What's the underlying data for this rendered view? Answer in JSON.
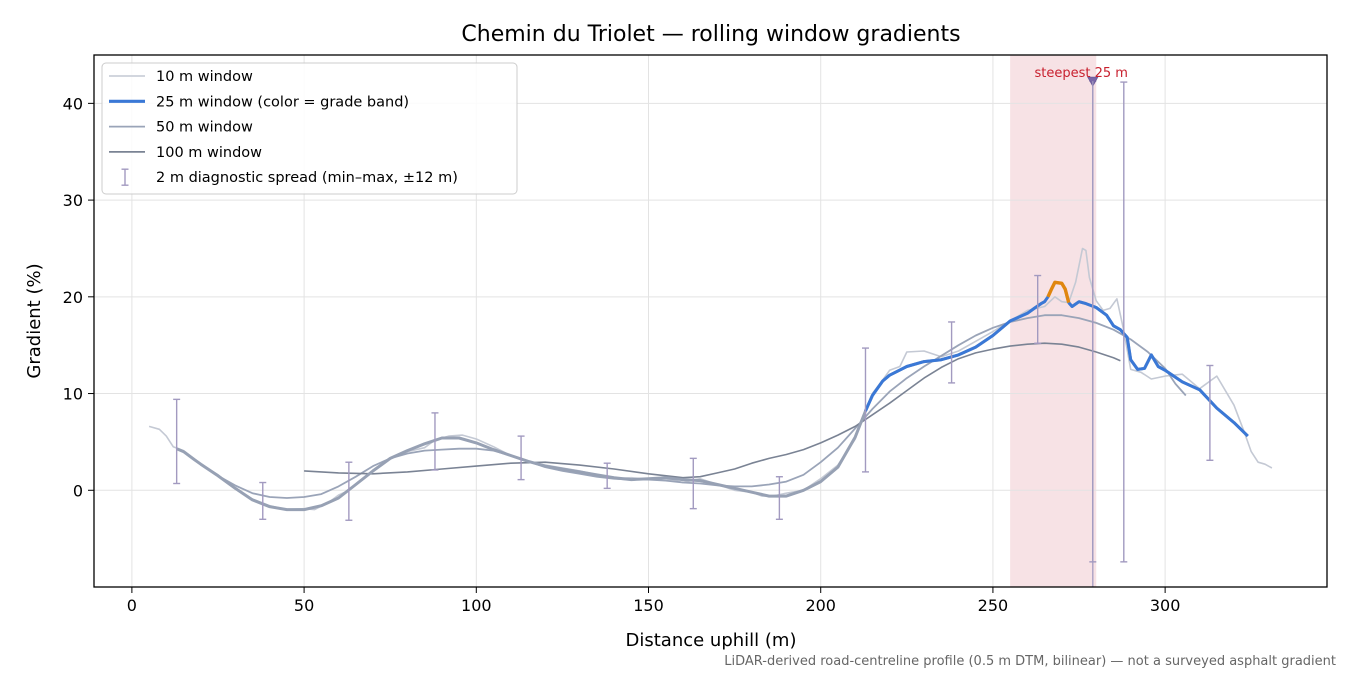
{
  "chart_data": {
    "type": "line",
    "title": "Chemin du Triolet — rolling window gradients",
    "xlabel": "Distance uphill (m)",
    "ylabel": "Gradient (%)",
    "footnote": "LiDAR-derived road-centreline profile (0.5 m DTM, bilinear) — not a surveyed asphalt gradient",
    "xlim": [
      -11,
      347
    ],
    "ylim": [
      -10,
      45
    ],
    "xticks": [
      0,
      50,
      100,
      150,
      200,
      250,
      300
    ],
    "yticks": [
      0,
      10,
      20,
      30,
      40
    ],
    "grid": true,
    "legend_position": "upper-left",
    "colors": {
      "w10": "#c4c9d4",
      "w25": "#3a78d6",
      "w25_steep": "#e0860e",
      "w50": "#9aa4b8",
      "w100": "#7a8394",
      "spread": "#a29ac0",
      "highlight": "#e9b3bb",
      "annotation": "#c8202e"
    },
    "legend": [
      {
        "key": "w10",
        "label": "10 m window"
      },
      {
        "key": "w25",
        "label": "25 m window (color = grade band)"
      },
      {
        "key": "w50",
        "label": "50 m window"
      },
      {
        "key": "w100",
        "label": "100 m window"
      },
      {
        "key": "spread",
        "label": "2 m diagnostic spread (min–max, ±12 m)"
      }
    ],
    "highlight_band": {
      "x0": 255,
      "x1": 280,
      "label": "steepest 25 m",
      "marker_x": 279,
      "marker_y": 42.3
    },
    "series": [
      {
        "key": "w10",
        "name": "10 m window",
        "points": [
          [
            5,
            6.6
          ],
          [
            8,
            6.3
          ],
          [
            10,
            5.6
          ],
          [
            12,
            4.5
          ],
          [
            15,
            4.1
          ],
          [
            18,
            3.3
          ],
          [
            20,
            2.7
          ],
          [
            25,
            1.6
          ],
          [
            30,
            0.2
          ],
          [
            35,
            -0.9
          ],
          [
            40,
            -1.6
          ],
          [
            45,
            -2.0
          ],
          [
            50,
            -1.9
          ],
          [
            53,
            -2.0
          ],
          [
            57,
            -1.3
          ],
          [
            60,
            -0.5
          ],
          [
            63,
            0.0
          ],
          [
            66,
            0.9
          ],
          [
            70,
            2.0
          ],
          [
            75,
            3.3
          ],
          [
            80,
            4.0
          ],
          [
            85,
            4.4
          ],
          [
            88,
            5.2
          ],
          [
            92,
            5.6
          ],
          [
            96,
            5.7
          ],
          [
            100,
            5.3
          ],
          [
            105,
            4.5
          ],
          [
            110,
            3.6
          ],
          [
            115,
            3.0
          ],
          [
            120,
            2.6
          ],
          [
            125,
            2.3
          ],
          [
            130,
            2.0
          ],
          [
            135,
            1.6
          ],
          [
            140,
            1.2
          ],
          [
            145,
            1.3
          ],
          [
            150,
            1.1
          ],
          [
            155,
            1.2
          ],
          [
            160,
            0.8
          ],
          [
            165,
            1.2
          ],
          [
            170,
            0.6
          ],
          [
            175,
            0.0
          ],
          [
            180,
            -0.2
          ],
          [
            183,
            -0.6
          ],
          [
            186,
            -0.6
          ],
          [
            190,
            -0.3
          ],
          [
            195,
            0.0
          ],
          [
            200,
            1.2
          ],
          [
            205,
            2.6
          ],
          [
            210,
            5.3
          ],
          [
            213,
            8.3
          ],
          [
            215,
            10.0
          ],
          [
            218,
            11.4
          ],
          [
            220,
            12.4
          ],
          [
            223,
            12.8
          ],
          [
            225,
            14.3
          ],
          [
            230,
            14.4
          ],
          [
            235,
            13.8
          ],
          [
            240,
            14.4
          ],
          [
            245,
            15.4
          ],
          [
            250,
            16.4
          ],
          [
            255,
            17.5
          ],
          [
            260,
            18.6
          ],
          [
            265,
            19.0
          ],
          [
            268,
            20.0
          ],
          [
            270,
            19.5
          ],
          [
            272,
            19.4
          ],
          [
            274,
            21.5
          ],
          [
            276,
            25.0
          ],
          [
            277,
            24.8
          ],
          [
            278,
            22.0
          ],
          [
            280,
            19.6
          ],
          [
            282,
            18.6
          ],
          [
            284,
            18.8
          ],
          [
            286,
            19.8
          ],
          [
            288,
            16.5
          ],
          [
            290,
            12.5
          ],
          [
            293,
            12.2
          ],
          [
            296,
            11.5
          ],
          [
            300,
            11.8
          ],
          [
            305,
            12.0
          ],
          [
            310,
            10.5
          ],
          [
            315,
            11.8
          ],
          [
            320,
            8.8
          ],
          [
            323,
            6.0
          ],
          [
            325,
            4.0
          ],
          [
            327,
            2.9
          ],
          [
            329,
            2.7
          ],
          [
            331,
            2.3
          ]
        ]
      },
      {
        "key": "w50",
        "name": "50 m window",
        "points": [
          [
            25,
            1.5
          ],
          [
            30,
            0.5
          ],
          [
            35,
            -0.3
          ],
          [
            40,
            -0.7
          ],
          [
            45,
            -0.8
          ],
          [
            50,
            -0.7
          ],
          [
            55,
            -0.4
          ],
          [
            60,
            0.4
          ],
          [
            65,
            1.4
          ],
          [
            70,
            2.5
          ],
          [
            75,
            3.3
          ],
          [
            80,
            3.8
          ],
          [
            85,
            4.1
          ],
          [
            90,
            4.2
          ],
          [
            95,
            4.3
          ],
          [
            100,
            4.3
          ],
          [
            105,
            4.1
          ],
          [
            110,
            3.6
          ],
          [
            115,
            3.0
          ],
          [
            120,
            2.4
          ],
          [
            125,
            2.0
          ],
          [
            130,
            1.7
          ],
          [
            135,
            1.4
          ],
          [
            140,
            1.2
          ],
          [
            145,
            1.1
          ],
          [
            150,
            1.1
          ],
          [
            155,
            1.0
          ],
          [
            160,
            0.8
          ],
          [
            165,
            0.7
          ],
          [
            170,
            0.5
          ],
          [
            175,
            0.4
          ],
          [
            180,
            0.4
          ],
          [
            185,
            0.6
          ],
          [
            190,
            0.9
          ],
          [
            195,
            1.6
          ],
          [
            200,
            2.9
          ],
          [
            205,
            4.4
          ],
          [
            210,
            6.4
          ],
          [
            215,
            8.4
          ],
          [
            220,
            10.2
          ],
          [
            225,
            11.6
          ],
          [
            230,
            12.8
          ],
          [
            235,
            13.9
          ],
          [
            240,
            15.0
          ],
          [
            245,
            16.0
          ],
          [
            250,
            16.8
          ],
          [
            255,
            17.4
          ],
          [
            260,
            17.8
          ],
          [
            265,
            18.1
          ],
          [
            270,
            18.1
          ],
          [
            275,
            17.8
          ],
          [
            280,
            17.3
          ],
          [
            285,
            16.6
          ],
          [
            290,
            15.6
          ],
          [
            295,
            14.3
          ],
          [
            300,
            12.6
          ],
          [
            303,
            11.0
          ],
          [
            306,
            9.8
          ]
        ]
      },
      {
        "key": "w100",
        "name": "100 m window",
        "points": [
          [
            50,
            2.0
          ],
          [
            55,
            1.9
          ],
          [
            60,
            1.8
          ],
          [
            70,
            1.7
          ],
          [
            80,
            1.9
          ],
          [
            90,
            2.2
          ],
          [
            100,
            2.5
          ],
          [
            110,
            2.8
          ],
          [
            120,
            2.9
          ],
          [
            130,
            2.6
          ],
          [
            140,
            2.2
          ],
          [
            150,
            1.7
          ],
          [
            160,
            1.3
          ],
          [
            165,
            1.4
          ],
          [
            170,
            1.8
          ],
          [
            175,
            2.2
          ],
          [
            180,
            2.8
          ],
          [
            185,
            3.3
          ],
          [
            190,
            3.7
          ],
          [
            195,
            4.2
          ],
          [
            200,
            4.9
          ],
          [
            205,
            5.7
          ],
          [
            210,
            6.6
          ],
          [
            215,
            7.8
          ],
          [
            220,
            9.0
          ],
          [
            225,
            10.3
          ],
          [
            230,
            11.6
          ],
          [
            235,
            12.7
          ],
          [
            240,
            13.6
          ],
          [
            245,
            14.2
          ],
          [
            250,
            14.6
          ],
          [
            255,
            14.9
          ],
          [
            260,
            15.1
          ],
          [
            265,
            15.2
          ],
          [
            270,
            15.1
          ],
          [
            275,
            14.8
          ],
          [
            280,
            14.3
          ],
          [
            285,
            13.7
          ],
          [
            287,
            13.4
          ]
        ]
      },
      {
        "key": "w25",
        "name": "25 m window (color = grade band)",
        "points": [
          [
            13,
            4.3
          ],
          [
            15,
            4.0
          ],
          [
            18,
            3.2
          ],
          [
            20,
            2.7
          ],
          [
            25,
            1.5
          ],
          [
            30,
            0.2
          ],
          [
            35,
            -1.0
          ],
          [
            40,
            -1.7
          ],
          [
            45,
            -2.0
          ],
          [
            50,
            -2.0
          ],
          [
            55,
            -1.6
          ],
          [
            60,
            -0.8
          ],
          [
            65,
            0.6
          ],
          [
            70,
            2.0
          ],
          [
            75,
            3.3
          ],
          [
            80,
            4.1
          ],
          [
            85,
            4.8
          ],
          [
            90,
            5.4
          ],
          [
            95,
            5.4
          ],
          [
            100,
            4.9
          ],
          [
            105,
            4.2
          ],
          [
            110,
            3.6
          ],
          [
            115,
            3.0
          ],
          [
            120,
            2.5
          ],
          [
            125,
            2.2
          ],
          [
            130,
            1.9
          ],
          [
            135,
            1.6
          ],
          [
            140,
            1.3
          ],
          [
            145,
            1.1
          ],
          [
            150,
            1.2
          ],
          [
            155,
            1.3
          ],
          [
            160,
            1.1
          ],
          [
            165,
            1.0
          ],
          [
            170,
            0.6
          ],
          [
            175,
            0.2
          ],
          [
            180,
            -0.2
          ],
          [
            185,
            -0.6
          ],
          [
            190,
            -0.6
          ],
          [
            195,
            0.0
          ],
          [
            200,
            0.9
          ],
          [
            205,
            2.4
          ],
          [
            210,
            5.5
          ],
          [
            213,
            8.2
          ],
          [
            215,
            9.8
          ],
          [
            218,
            11.3
          ],
          [
            220,
            11.9
          ],
          [
            225,
            12.8
          ],
          [
            230,
            13.3
          ],
          [
            235,
            13.5
          ],
          [
            240,
            14.0
          ],
          [
            245,
            14.8
          ],
          [
            250,
            16.0
          ],
          [
            255,
            17.5
          ],
          [
            260,
            18.3
          ],
          [
            262,
            18.8
          ],
          [
            264,
            19.3
          ],
          [
            265,
            19.5
          ],
          [
            266,
            20.0
          ],
          [
            267,
            20.8
          ],
          [
            268,
            21.5
          ],
          [
            270,
            21.4
          ],
          [
            271,
            20.8
          ],
          [
            272,
            19.4
          ],
          [
            273,
            19.0
          ],
          [
            275,
            19.5
          ],
          [
            277,
            19.3
          ],
          [
            280,
            18.9
          ],
          [
            283,
            18.1
          ],
          [
            285,
            17.0
          ],
          [
            287,
            16.6
          ],
          [
            289,
            15.8
          ],
          [
            290,
            13.5
          ],
          [
            292,
            12.5
          ],
          [
            294,
            12.6
          ],
          [
            296,
            14.0
          ],
          [
            298,
            12.8
          ],
          [
            300,
            12.4
          ],
          [
            305,
            11.2
          ],
          [
            310,
            10.4
          ],
          [
            315,
            8.5
          ],
          [
            320,
            7.0
          ],
          [
            324,
            5.6
          ]
        ],
        "steep_range": [
          266,
          272
        ]
      }
    ],
    "spread_bars": [
      {
        "x": 13,
        "min": 0.7,
        "max": 9.4
      },
      {
        "x": 38,
        "min": -3.0,
        "max": 0.8
      },
      {
        "x": 63,
        "min": -3.1,
        "max": 2.9
      },
      {
        "x": 88,
        "min": 2.1,
        "max": 8.0
      },
      {
        "x": 113,
        "min": 1.1,
        "max": 5.6
      },
      {
        "x": 138,
        "min": 0.2,
        "max": 2.8
      },
      {
        "x": 163,
        "min": -1.9,
        "max": 3.3
      },
      {
        "x": 188,
        "min": -3.0,
        "max": 1.4
      },
      {
        "x": 213,
        "min": 1.9,
        "max": 14.7
      },
      {
        "x": 238,
        "min": 11.1,
        "max": 17.4
      },
      {
        "x": 263,
        "min": 15.2,
        "max": 22.2
      },
      {
        "x": 279,
        "min": -7.4,
        "max": 42.3
      },
      {
        "x": 288,
        "min": -7.4,
        "max": 42.2
      },
      {
        "x": 313,
        "min": 3.1,
        "max": 12.9
      }
    ]
  }
}
